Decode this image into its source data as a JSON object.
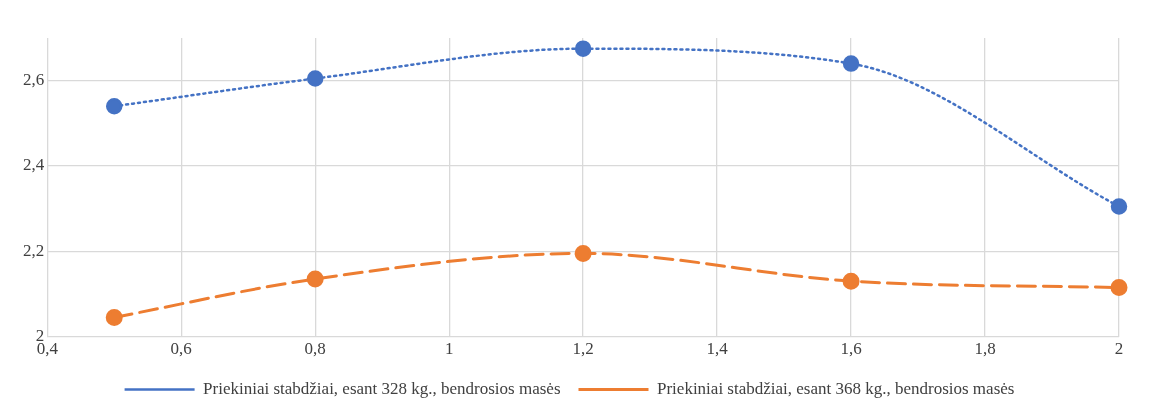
{
  "chart_data": {
    "type": "line",
    "x": [
      0.5,
      0.8,
      1.2,
      1.6,
      2
    ],
    "xlim": [
      0.4,
      2
    ],
    "xticks": [
      {
        "value": 0.4,
        "label": "0,4"
      },
      {
        "value": 0.6,
        "label": "0,6"
      },
      {
        "value": 0.8,
        "label": "0,8"
      },
      {
        "value": 1,
        "label": "1"
      },
      {
        "value": 1.2,
        "label": "1,2"
      },
      {
        "value": 1.4,
        "label": "1,4"
      },
      {
        "value": 1.6,
        "label": "1,6"
      },
      {
        "value": 1.8,
        "label": "1,8"
      },
      {
        "value": 2,
        "label": "2"
      }
    ],
    "ylim": [
      2,
      2.7
    ],
    "yticks": [
      {
        "value": 2,
        "label": "2"
      },
      {
        "value": 2.2,
        "label": "2,2"
      },
      {
        "value": 2.4,
        "label": "2,4"
      },
      {
        "value": 2.6,
        "label": "2,6"
      }
    ],
    "grid": true,
    "legend": "bottom",
    "marker": "circle",
    "series": [
      {
        "name": "Priekiniai stabdžiai, esant 328 kg., bendrosios masės",
        "color": "#4472c4",
        "line_style": "dotted",
        "values": [
          2.54,
          2.605,
          2.675,
          2.64,
          2.305
        ]
      },
      {
        "name": "Priekiniai stabdžiai, esant 368 kg., bendrosios masės",
        "color": "#ed7d31",
        "line_style": "dashed",
        "values": [
          2.045,
          2.135,
          2.195,
          2.13,
          2.115
        ]
      }
    ]
  }
}
